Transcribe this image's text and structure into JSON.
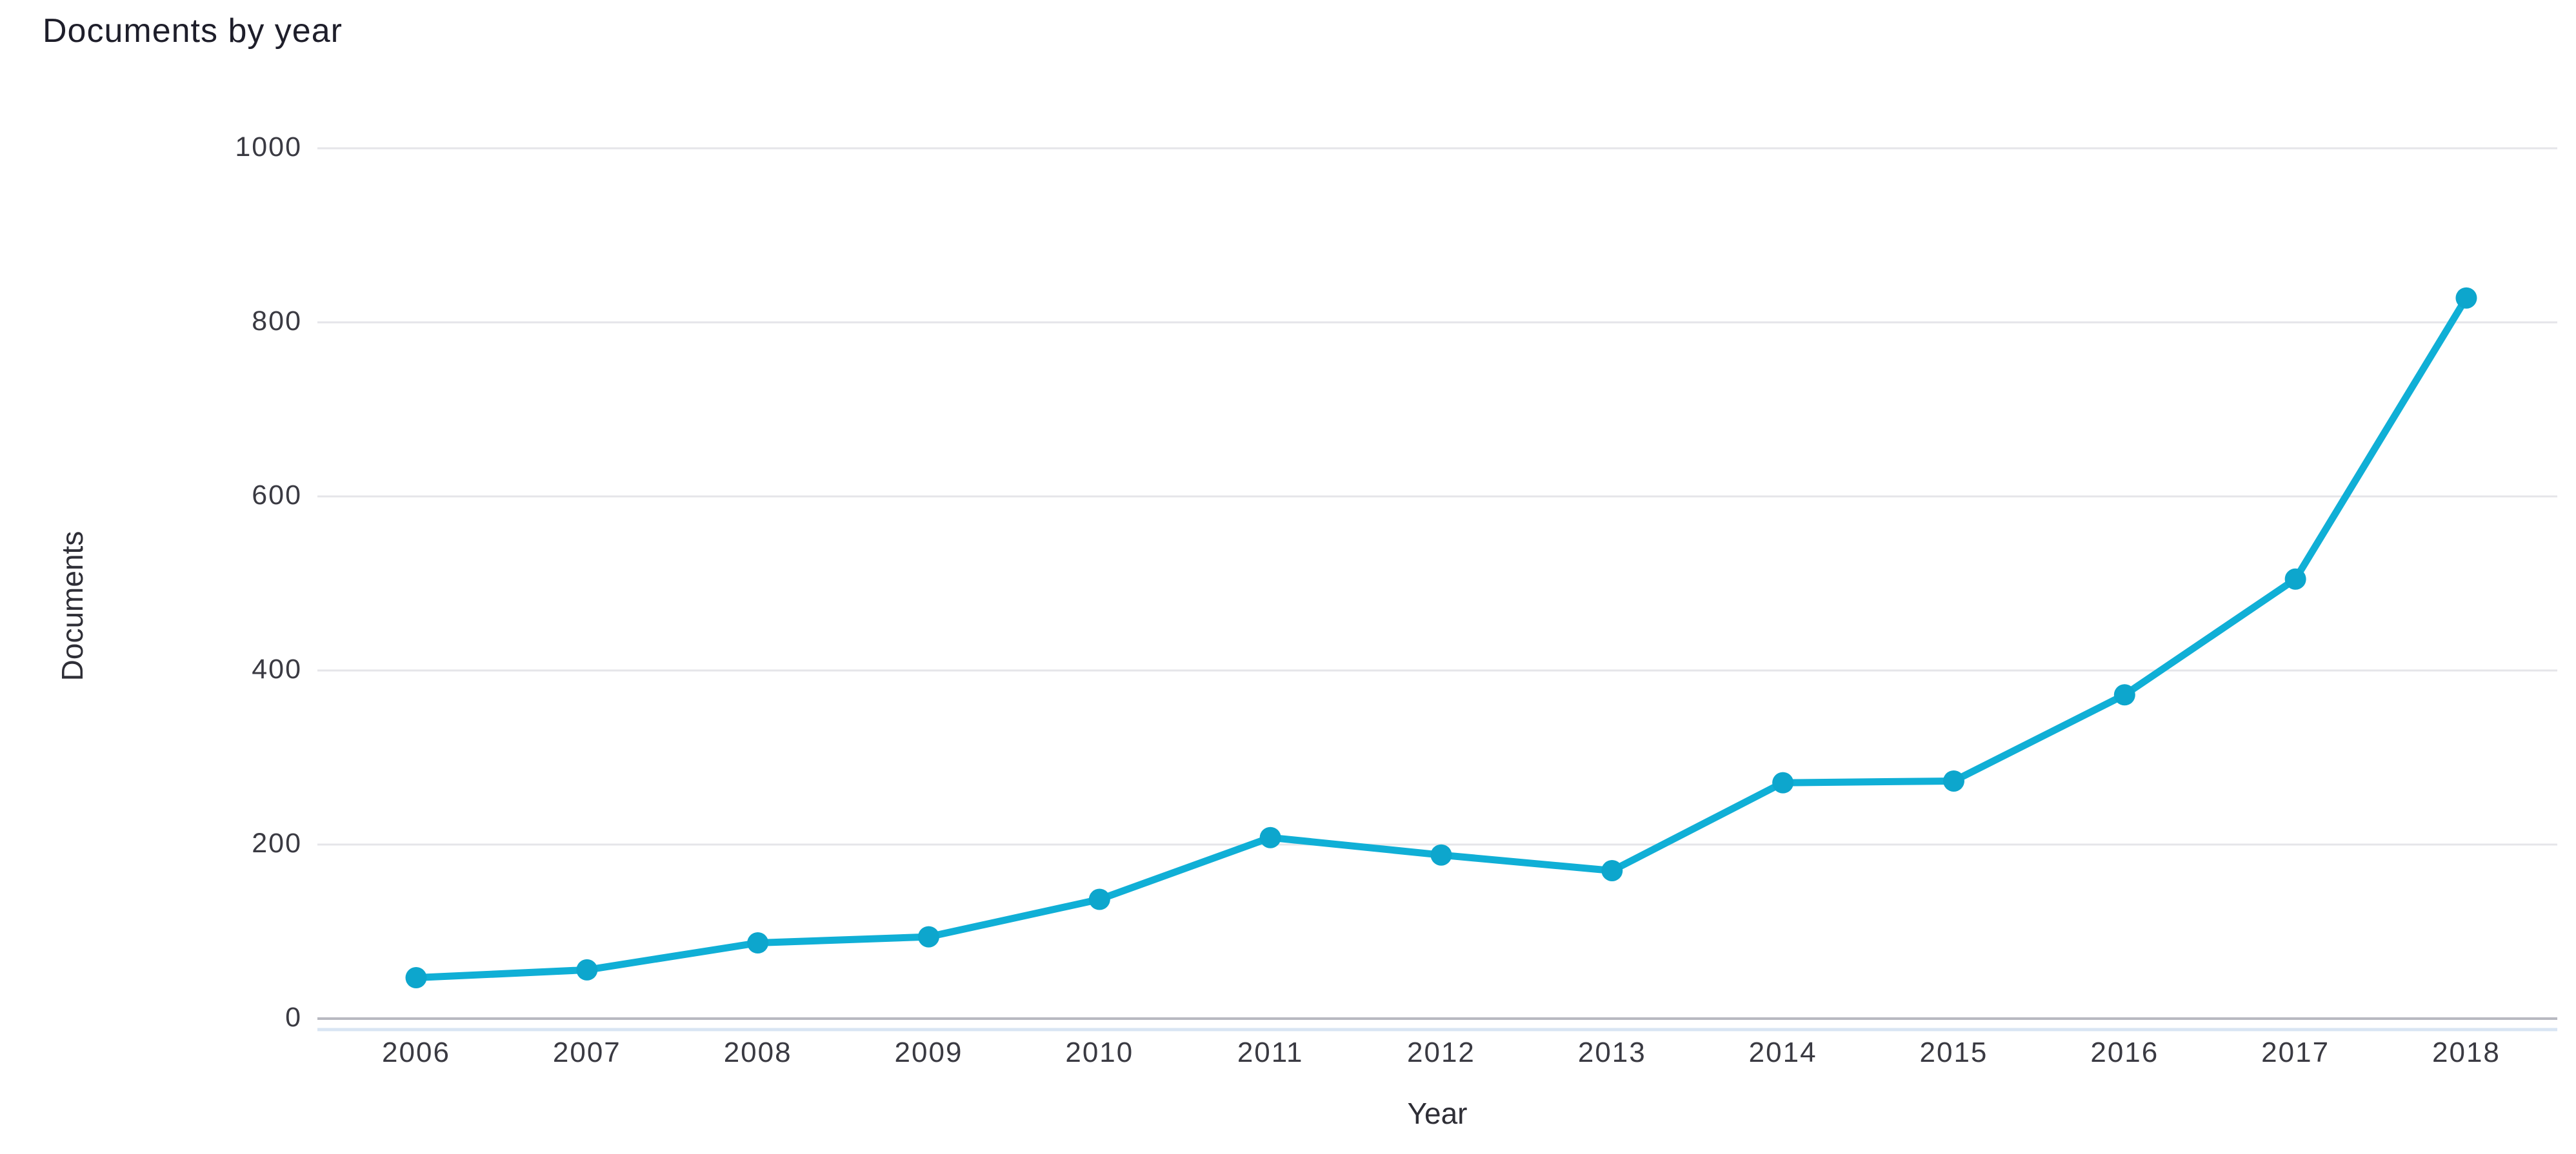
{
  "page": {
    "background": "#ffffff"
  },
  "chart_data": {
    "type": "line",
    "title": "Documents by year",
    "xlabel": "Year",
    "ylabel": "Documents",
    "categories": [
      "2006",
      "2007",
      "2008",
      "2009",
      "2010",
      "2011",
      "2012",
      "2013",
      "2014",
      "2015",
      "2016",
      "2017",
      "2018"
    ],
    "series": [
      {
        "name": "Documents",
        "values": [
          47,
          56,
          87,
          94,
          137,
          208,
          188,
          170,
          271,
          273,
          372,
          505,
          828
        ]
      }
    ],
    "ylim": [
      0,
      1000
    ],
    "yticks": [
      1000,
      800,
      600,
      400,
      200,
      0
    ],
    "grid": "horizontal",
    "legend_position": "none",
    "line_color": "#10afd6",
    "marker_color": "#0da6cd",
    "grid_color": "#e5e5e9",
    "zero_line_color": "#b8b9c1",
    "baseline_color": "#d8e5f3",
    "title_color": "#1e1e2a",
    "text_color": "#3a3a42"
  }
}
